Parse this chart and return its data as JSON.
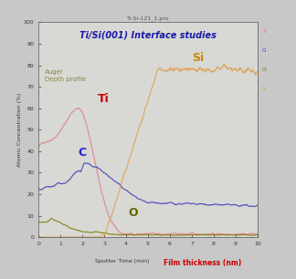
{
  "title": "Ti-Si-121_1.pro",
  "main_title": "Ti/Si(001) Interface studies",
  "annotation_text": "Auger\nDepth profile",
  "xlabel": "Sputter Time (min)",
  "xlabel2": "Film thickness (nm)",
  "ylabel": "Atomic Concentration (%)",
  "xlim": [
    0,
    10
  ],
  "ylim": [
    0,
    100
  ],
  "xticks": [
    0,
    1,
    2,
    3,
    4,
    5,
    6,
    7,
    8,
    9,
    10
  ],
  "yticks": [
    0,
    10,
    20,
    30,
    40,
    50,
    60,
    70,
    80,
    90,
    100
  ],
  "fig_bg_color": "#c8c8c8",
  "plot_bg_color": "#d8d8d4",
  "Ti_color": "#e08080",
  "C_color": "#4040bb",
  "O_color": "#7a7a00",
  "Si_color": "#e0a050",
  "legend_Ti": "Ti",
  "legend_C": "Ci",
  "legend_O": "Oi",
  "legend_Si": "Si",
  "label_Ti": "Ti",
  "label_C": "C",
  "label_O": "O",
  "label_Si": "Si",
  "title_color": "#1a1aaa",
  "auger_color": "#888844",
  "Ti_label_color": "#cc0000",
  "C_label_color": "#2222cc",
  "O_label_color": "#666600",
  "Si_label_color": "#cc8800",
  "xlabel2_color": "#cc0000"
}
